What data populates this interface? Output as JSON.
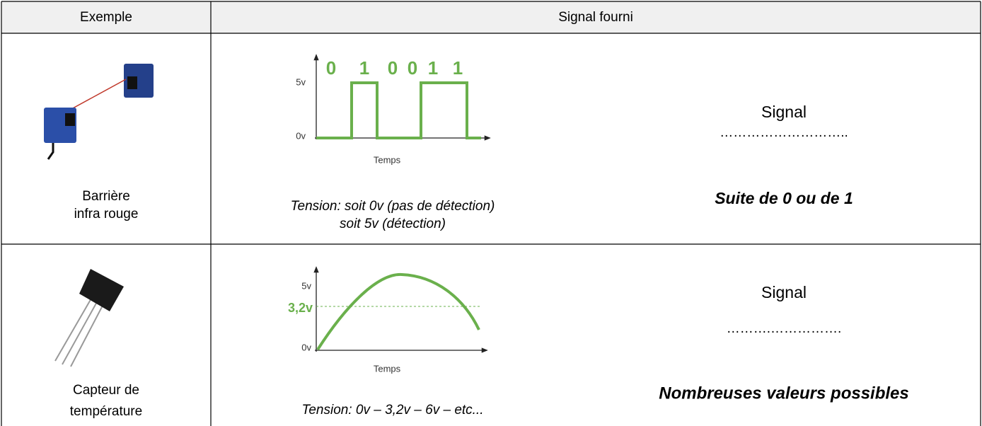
{
  "header": [
    "Exemple",
    "Signal fourni"
  ],
  "rows": [
    {
      "example": [
        "Barrière",
        "infra rouge"
      ],
      "diagram": {
        "bits": [
          "0",
          "1",
          "0",
          "0",
          "1",
          "1"
        ],
        "high": "5v",
        "low": "0v",
        "axis": "Temps"
      },
      "caption": [
        "Tension: soit 0v (pas de détection)",
        "soit 5v (détection)"
      ],
      "signal": "Signal",
      "blank": "………………………..",
      "answer": "Suite de 0 ou de 1"
    },
    {
      "example": [
        "Capteur de",
        "température"
      ],
      "diagram": {
        "high": "5v",
        "mid": "3,2v",
        "low": "0v",
        "axis": "Temps"
      },
      "caption": [
        "Tension: 0v – 3,2v – 6v – etc..."
      ],
      "signal": "Signal",
      "blank": "……….…………….",
      "answer": "Nombreuses valeurs possibles"
    }
  ]
}
